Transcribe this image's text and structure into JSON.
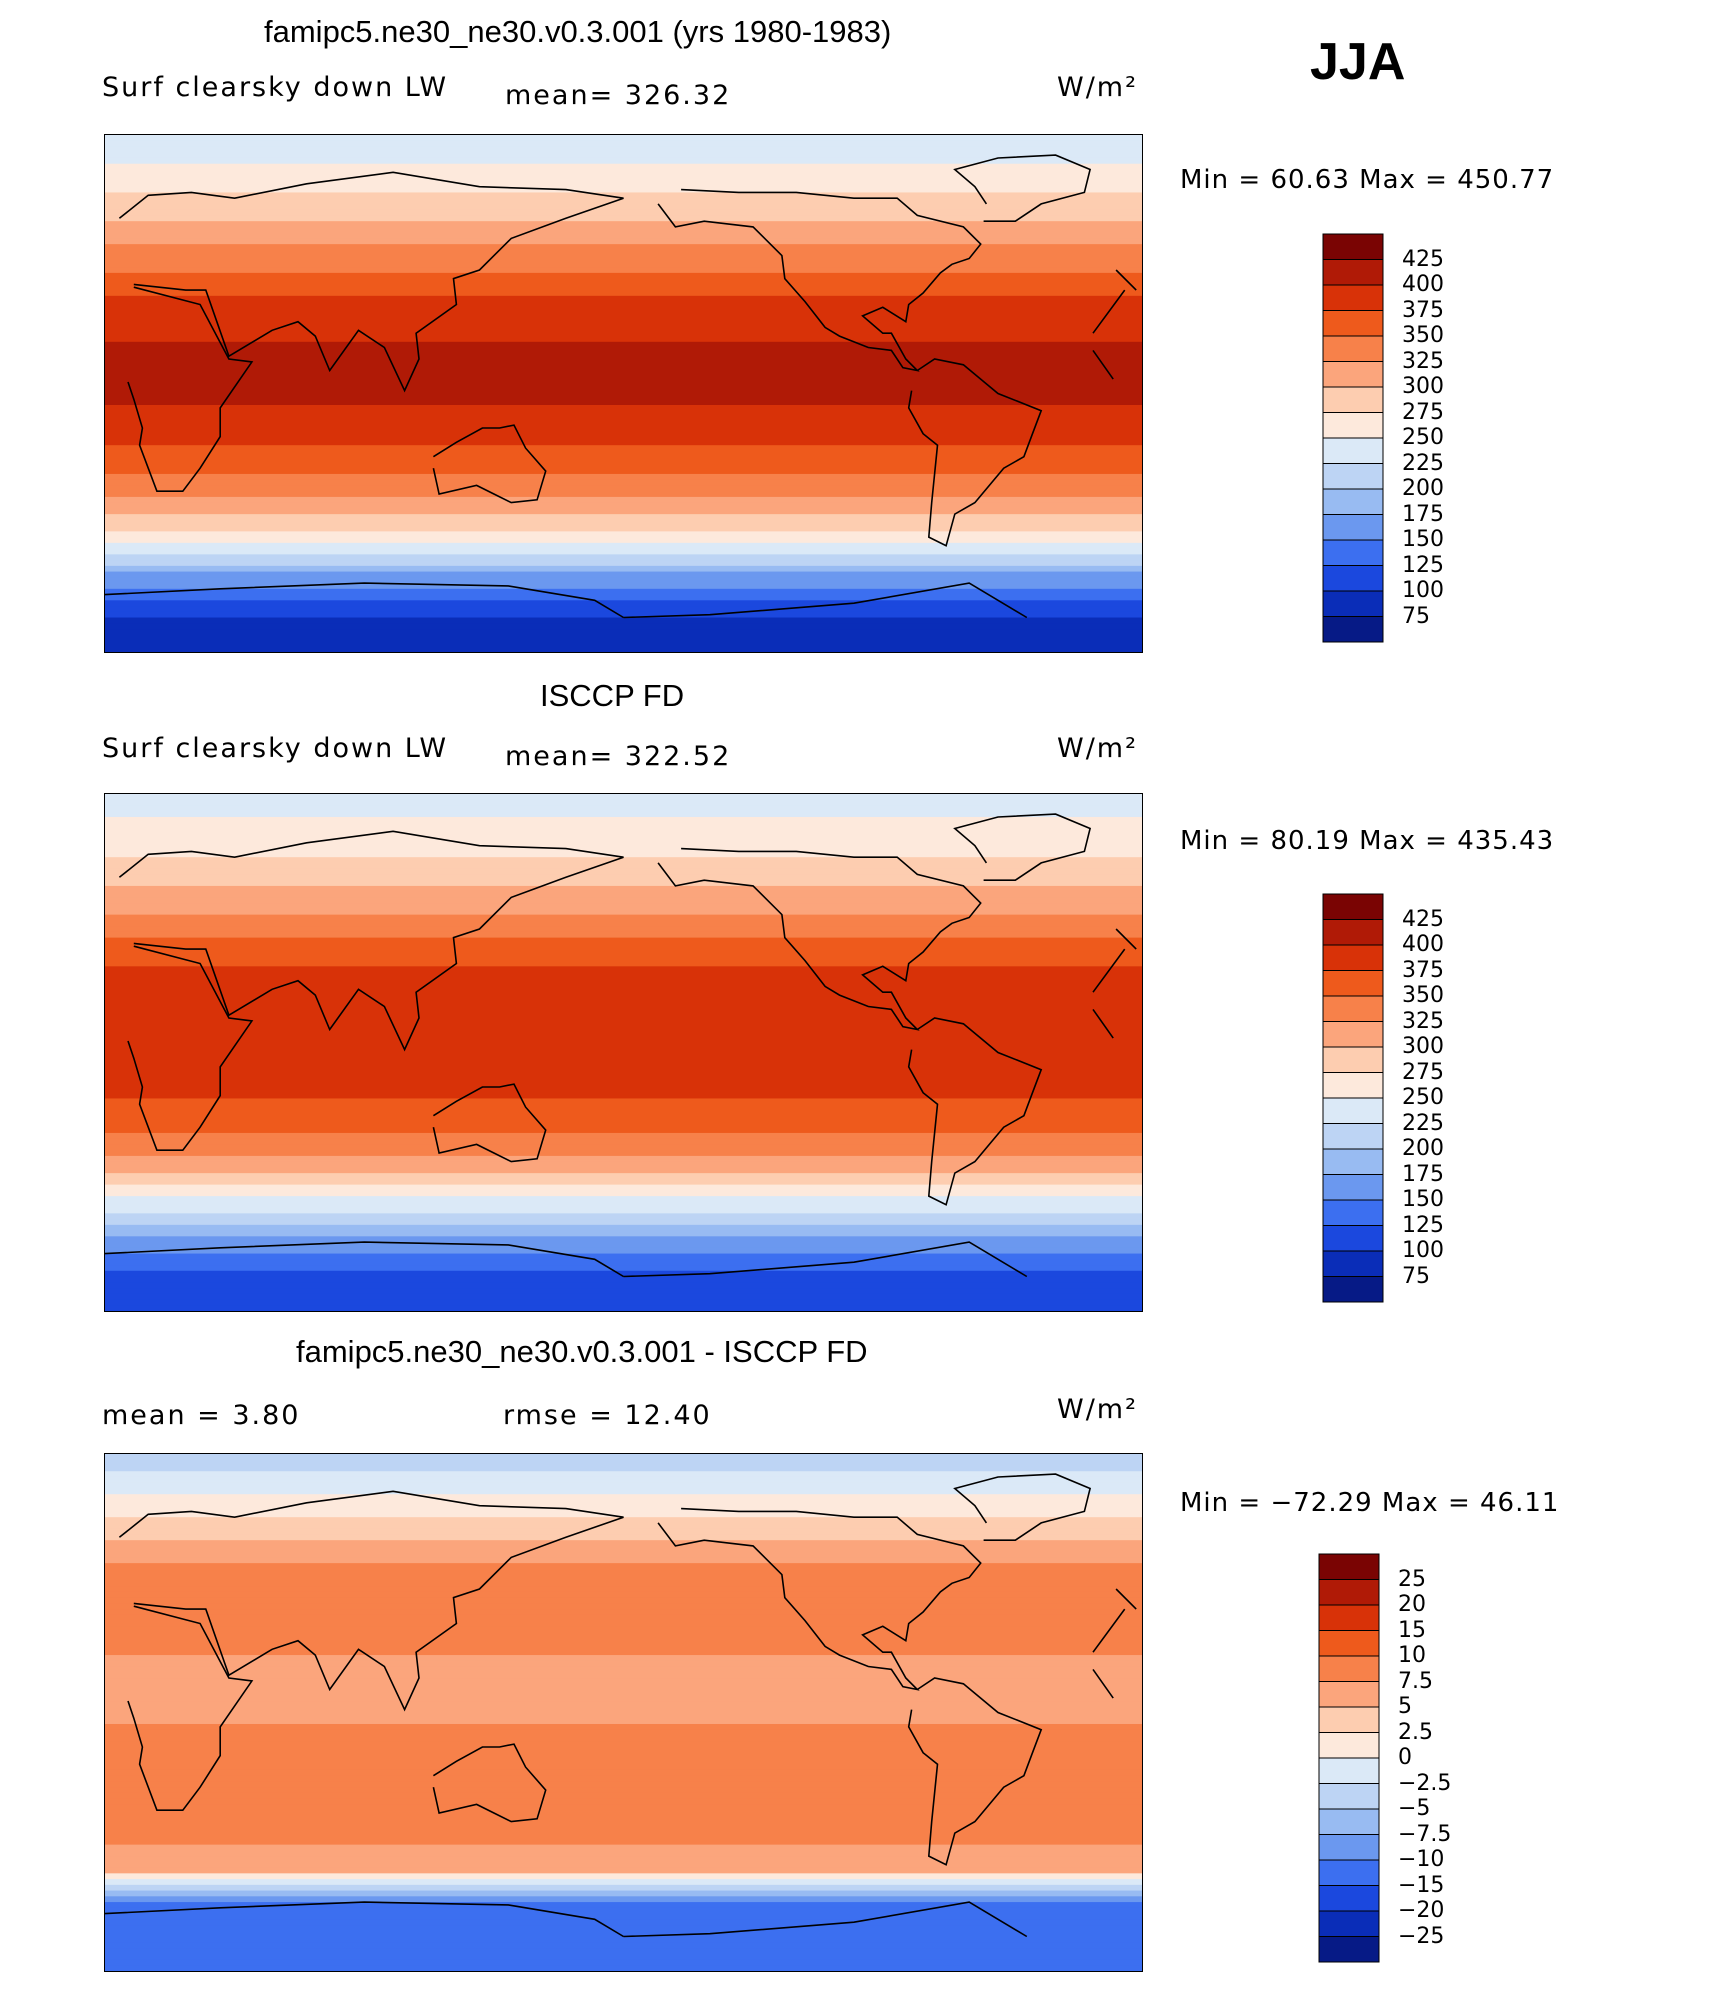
{
  "season": "JJA",
  "panels": [
    {
      "id": "model",
      "title": "famipc5.ne30_ne30.v0.3.001 (yrs 1980-1983)",
      "left_label": "Surf clearsky down LW",
      "stat_label": "mean= 326.32",
      "units": "W/m²",
      "minmax": "Min =   60.63 Max = 450.77",
      "colorbar_labels": [
        "425",
        "400",
        "375",
        "350",
        "325",
        "300",
        "275",
        "250",
        "225",
        "200",
        "175",
        "150",
        "125",
        "100",
        "75"
      ]
    },
    {
      "id": "obs",
      "title": "ISCCP FD",
      "left_label": "Surf clearsky down LW",
      "stat_label": "mean= 322.52",
      "units": "W/m²",
      "minmax": "Min =   80.19 Max = 435.43",
      "colorbar_labels": [
        "425",
        "400",
        "375",
        "350",
        "325",
        "300",
        "275",
        "250",
        "225",
        "200",
        "175",
        "150",
        "125",
        "100",
        "75"
      ]
    },
    {
      "id": "diff",
      "title": "famipc5.ne30_ne30.v0.3.001 - ISCCP FD",
      "left_label": "mean =    3.80",
      "stat_label": "rmse =   12.40",
      "units": "W/m²",
      "minmax": "Min = −72.29 Max =   46.11",
      "colorbar_labels": [
        "25",
        "20",
        "15",
        "10",
        "7.5",
        "5",
        "2.5",
        "0",
        "−2.5",
        "−5",
        "−7.5",
        "−10",
        "−15",
        "−20",
        "−25"
      ]
    }
  ],
  "colors": {
    "full_scale": [
      "#7a0403",
      "#b01a06",
      "#d83208",
      "#ee5a1c",
      "#f7814a",
      "#fba57c",
      "#fdcdb0",
      "#fde9dc",
      "#dbe9f7",
      "#bdd4f4",
      "#98bbf2",
      "#6b98ef",
      "#3c6ff0",
      "#1b48de",
      "#0a2db8",
      "#061a86"
    ],
    "diff_scale": [
      "#7a0403",
      "#b01a06",
      "#d83208",
      "#ee5a1c",
      "#f7814a",
      "#fba57c",
      "#fdcdb0",
      "#fde9dc",
      "#dbe9f7",
      "#bdd4f4",
      "#98bbf2",
      "#6b98ef",
      "#3c6ff0",
      "#1b48de",
      "#0a2db8",
      "#061a86"
    ]
  },
  "chart_data": [
    {
      "type": "heatmap",
      "title": "famipc5.ne30_ne30.v0.3.001 (yrs 1980-1983)",
      "subtitle": "Surf clearsky down LW",
      "units": "W/m²",
      "mean": 326.32,
      "min": 60.63,
      "max": 450.77,
      "contour_levels": [
        75,
        100,
        125,
        150,
        175,
        200,
        225,
        250,
        275,
        300,
        325,
        350,
        375,
        400,
        425
      ],
      "lat_bands": [
        {
          "lat": 85,
          "value": 240
        },
        {
          "lat": 70,
          "value": 275
        },
        {
          "lat": 50,
          "value": 330
        },
        {
          "lat": 30,
          "value": 385
        },
        {
          "lat": 10,
          "value": 410
        },
        {
          "lat": -10,
          "value": 395
        },
        {
          "lat": -30,
          "value": 345
        },
        {
          "lat": -45,
          "value": 290
        },
        {
          "lat": -55,
          "value": 230
        },
        {
          "lat": -65,
          "value": 160
        },
        {
          "lat": -80,
          "value": 90
        }
      ]
    },
    {
      "type": "heatmap",
      "title": "ISCCP FD",
      "subtitle": "Surf clearsky down LW",
      "units": "W/m²",
      "mean": 322.52,
      "min": 80.19,
      "max": 435.43,
      "contour_levels": [
        75,
        100,
        125,
        150,
        175,
        200,
        225,
        250,
        275,
        300,
        325,
        350,
        375,
        400,
        425
      ],
      "lat_bands": [
        {
          "lat": 85,
          "value": 245
        },
        {
          "lat": 70,
          "value": 270
        },
        {
          "lat": 50,
          "value": 320
        },
        {
          "lat": 30,
          "value": 375
        },
        {
          "lat": 10,
          "value": 400
        },
        {
          "lat": -10,
          "value": 390
        },
        {
          "lat": -30,
          "value": 345
        },
        {
          "lat": -45,
          "value": 285
        },
        {
          "lat": -55,
          "value": 225
        },
        {
          "lat": -65,
          "value": 170
        },
        {
          "lat": -80,
          "value": 110
        }
      ]
    },
    {
      "type": "heatmap",
      "title": "famipc5.ne30_ne30.v0.3.001 - ISCCP FD",
      "units": "W/m²",
      "mean": 3.8,
      "rmse": 12.4,
      "min": -72.29,
      "max": 46.11,
      "contour_levels": [
        -25,
        -20,
        -15,
        -10,
        -7.5,
        -5,
        -2.5,
        0,
        2.5,
        5,
        7.5,
        10,
        15,
        20,
        25
      ],
      "lat_bands": [
        {
          "lat": 85,
          "value": -3
        },
        {
          "lat": 70,
          "value": 2
        },
        {
          "lat": 50,
          "value": 8
        },
        {
          "lat": 30,
          "value": 9
        },
        {
          "lat": 10,
          "value": 6
        },
        {
          "lat": -10,
          "value": 8
        },
        {
          "lat": -30,
          "value": 9
        },
        {
          "lat": -45,
          "value": 8
        },
        {
          "lat": -55,
          "value": 5
        },
        {
          "lat": -65,
          "value": -10
        },
        {
          "lat": -80,
          "value": -15
        }
      ]
    }
  ]
}
